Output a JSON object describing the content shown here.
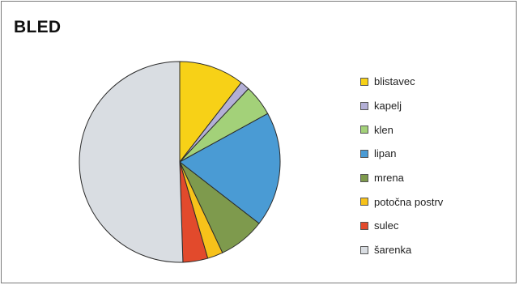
{
  "title": "BLED",
  "chart_data": {
    "type": "pie",
    "title": "BLED",
    "legend_position": "right",
    "slices": [
      {
        "label": "blistavec",
        "value": 10.5,
        "color": "#f7d117"
      },
      {
        "label": "kapelj",
        "value": 1.5,
        "color": "#b3afd6"
      },
      {
        "label": "klen",
        "value": 5.0,
        "color": "#a3d179"
      },
      {
        "label": "lipan",
        "value": 18.5,
        "color": "#4a9bd4"
      },
      {
        "label": "mrena",
        "value": 7.5,
        "color": "#7e9a4d"
      },
      {
        "label": "potočna postrv",
        "value": 2.5,
        "color": "#f7c21a"
      },
      {
        "label": "sulec",
        "value": 4.0,
        "color": "#e24a2c"
      },
      {
        "label": "šarenka",
        "value": 50.5,
        "color": "#d9dde2"
      }
    ]
  }
}
